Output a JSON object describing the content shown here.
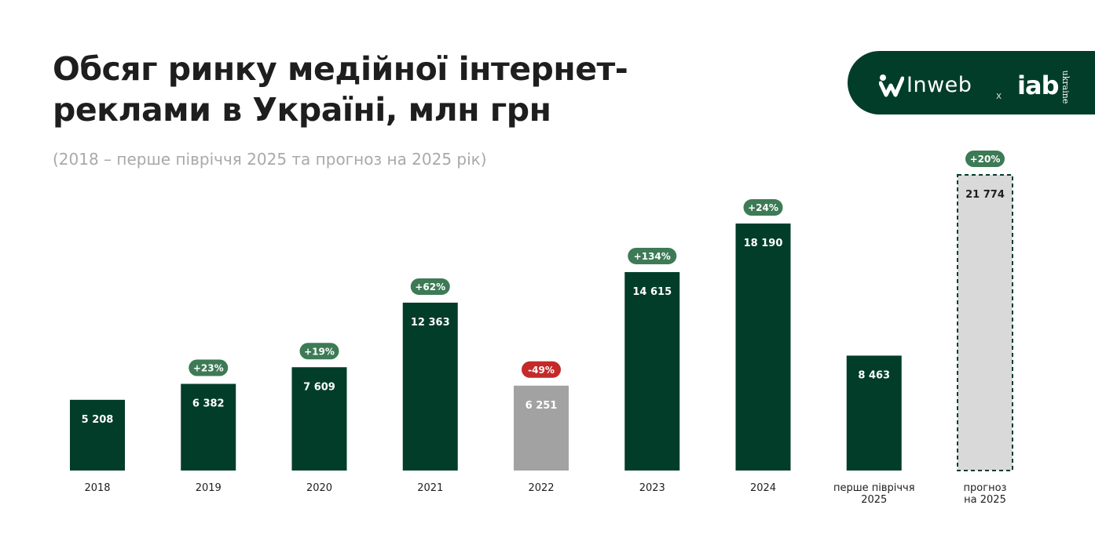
{
  "title": "Обсяг ринку медійної інтернет-реклами в Україні, млн грн",
  "subtitle": "(2018 – перше півріччя 2025 та прогноз на 2025 рік)",
  "logo": {
    "brand": "Inweb",
    "separator": "x",
    "partner": "iab",
    "partner_sub": "ukraine"
  },
  "colors": {
    "bar": "#023d29",
    "bar_decline": "#a3a2a2",
    "bar_forecast": "#d9d9d9",
    "forecast_border": "#023d29",
    "badge_growth": "#3d7a56",
    "badge_decline": "#c42a2a",
    "label_text": "#1e1e1e"
  },
  "chart_data": {
    "type": "bar",
    "title": "Обсяг ринку медійної інтернет-реклами в Україні, млн грн",
    "subtitle": "(2018 – перше півріччя 2025 та прогноз на 2025 рік)",
    "xlabel": "",
    "ylabel": "",
    "ylim": [
      0,
      21774
    ],
    "grid": false,
    "legend": "none",
    "bars": [
      {
        "category": [
          "2018"
        ],
        "value": 5208,
        "label": "5 208",
        "change": "",
        "style": "normal"
      },
      {
        "category": [
          "2019"
        ],
        "value": 6382,
        "label": "6 382",
        "change": "+23%",
        "style": "normal"
      },
      {
        "category": [
          "2020"
        ],
        "value": 7609,
        "label": "7 609",
        "change": "+19%",
        "style": "normal"
      },
      {
        "category": [
          "2021"
        ],
        "value": 12363,
        "label": "12 363",
        "change": "+62%",
        "style": "normal"
      },
      {
        "category": [
          "2022"
        ],
        "value": 6251,
        "label": "6 251",
        "change": "-49%",
        "style": "decline"
      },
      {
        "category": [
          "2023"
        ],
        "value": 14615,
        "label": "14 615",
        "change": "+134%",
        "style": "normal"
      },
      {
        "category": [
          "2024"
        ],
        "value": 18190,
        "label": "18 190",
        "change": "+24%",
        "style": "normal"
      },
      {
        "category": [
          "перше півріччя",
          "2025"
        ],
        "value": 8463,
        "label": "8 463",
        "change": "",
        "style": "normal"
      },
      {
        "category": [
          "прогноз",
          "на 2025"
        ],
        "value": 21774,
        "label": "21 774",
        "change": "+20%",
        "style": "forecast"
      }
    ]
  }
}
